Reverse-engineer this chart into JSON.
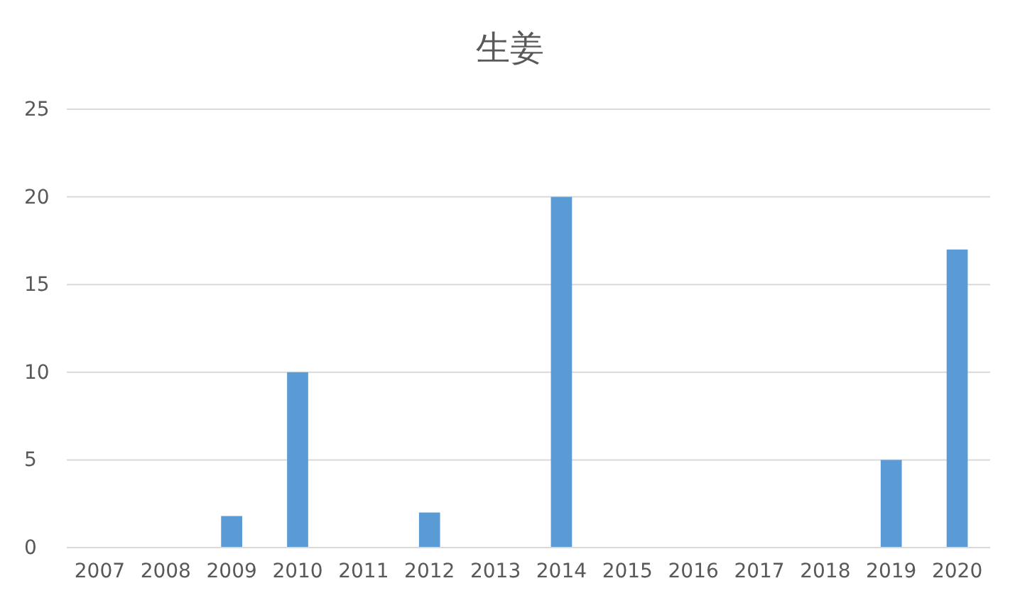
{
  "chart_data": {
    "type": "bar",
    "title": "生姜",
    "categories": [
      "2007",
      "2008",
      "2009",
      "2010",
      "2011",
      "2012",
      "2013",
      "2014",
      "2015",
      "2016",
      "2017",
      "2018",
      "2019",
      "2020"
    ],
    "values": [
      null,
      null,
      1.8,
      10,
      null,
      2,
      null,
      20,
      null,
      null,
      null,
      null,
      5,
      17
    ],
    "color": "#5b9bd5",
    "ylim": [
      0,
      25
    ],
    "yticks": [
      0,
      5,
      10,
      15,
      20,
      25
    ],
    "grid": "y"
  }
}
